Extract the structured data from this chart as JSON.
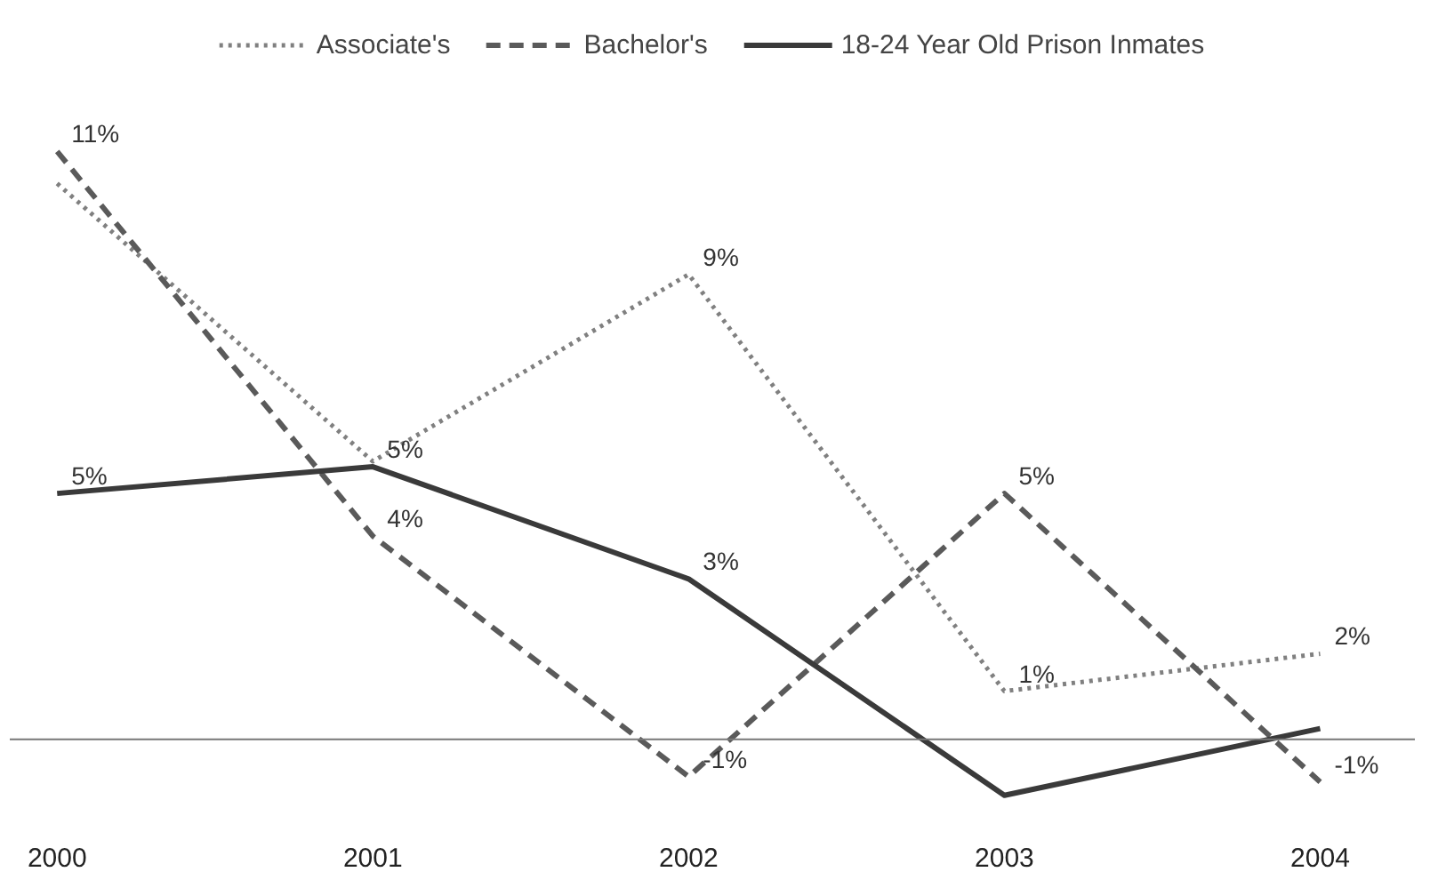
{
  "chart_data": {
    "type": "line",
    "categories": [
      "2000",
      "2001",
      "2002",
      "2003",
      "2004"
    ],
    "legend": "top",
    "grid": false,
    "marker": "none",
    "series": [
      {
        "name": "Associate's",
        "color": "#808080",
        "line_style": "dotted",
        "values": [
          10.4,
          5.2,
          8.7,
          0.9,
          1.6
        ],
        "value_labels": [
          null,
          null,
          "9%",
          "1%",
          "2%"
        ]
      },
      {
        "name": "Bachelor's",
        "color": "#5a5a5a",
        "line_style": "dashed",
        "values": [
          11,
          3.8,
          -0.7,
          4.6,
          -0.8
        ],
        "value_labels": [
          "11%",
          "4%",
          "-1%",
          "5%",
          "-1%"
        ]
      },
      {
        "name": "18-24 Year Old Prison Inmates",
        "color": "#3a3a3a",
        "line_style": "solid",
        "values": [
          4.6,
          5.1,
          3.0,
          -1.05,
          0.2
        ],
        "value_labels": [
          "5%",
          "5%",
          "3%",
          null,
          null
        ]
      }
    ]
  }
}
